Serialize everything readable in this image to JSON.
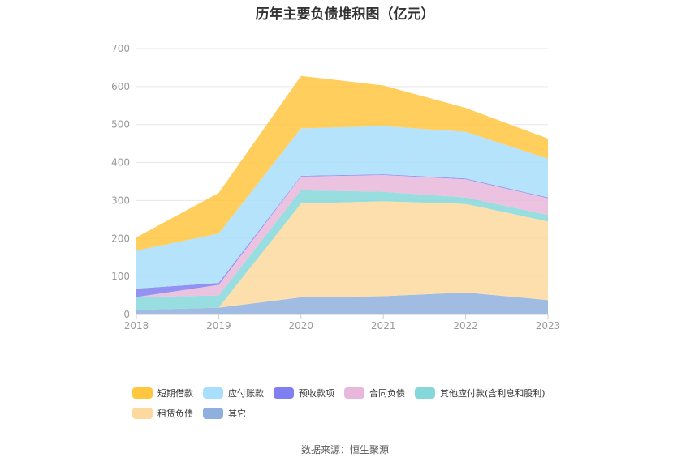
{
  "title": "历年主要负债堆积图（亿元）",
  "source": "数据来源：恒生聚源",
  "chart_data": {
    "type": "area",
    "stacked": true,
    "x": [
      "2018",
      "2019",
      "2020",
      "2021",
      "2022",
      "2023"
    ],
    "ylim": [
      0,
      700
    ],
    "yticks": [
      0,
      100,
      200,
      300,
      400,
      500,
      600,
      700
    ],
    "grid": true,
    "legend_position": "bottom",
    "series": [
      {
        "name": "其它",
        "color": "#8fb0de",
        "values": [
          12,
          18,
          45,
          48,
          58,
          38
        ]
      },
      {
        "name": "租赁负债",
        "color": "#fdd9a0",
        "values": [
          0,
          0,
          247,
          250,
          233,
          207
        ]
      },
      {
        "name": "其他应付款(含利息和股利)",
        "color": "#86d7d9",
        "values": [
          34,
          32,
          35,
          25,
          17,
          17
        ]
      },
      {
        "name": "合同负债",
        "color": "#e8b8dc",
        "values": [
          0,
          28,
          36,
          44,
          48,
          44
        ]
      },
      {
        "name": "预收款项",
        "color": "#7f7ff0",
        "values": [
          22,
          5,
          2,
          2,
          2,
          2
        ]
      },
      {
        "name": "应付账款",
        "color": "#a9defc",
        "values": [
          100,
          130,
          125,
          127,
          123,
          102
        ]
      },
      {
        "name": "短期借款",
        "color": "#ffc640",
        "values": [
          35,
          107,
          138,
          107,
          63,
          53
        ]
      }
    ],
    "legend_rows": [
      [
        "短期借款",
        "应付账款",
        "预收款项",
        "合同负债",
        "其他应付款(含利息和股利)"
      ],
      [
        "租赁负债",
        "其它"
      ]
    ]
  }
}
